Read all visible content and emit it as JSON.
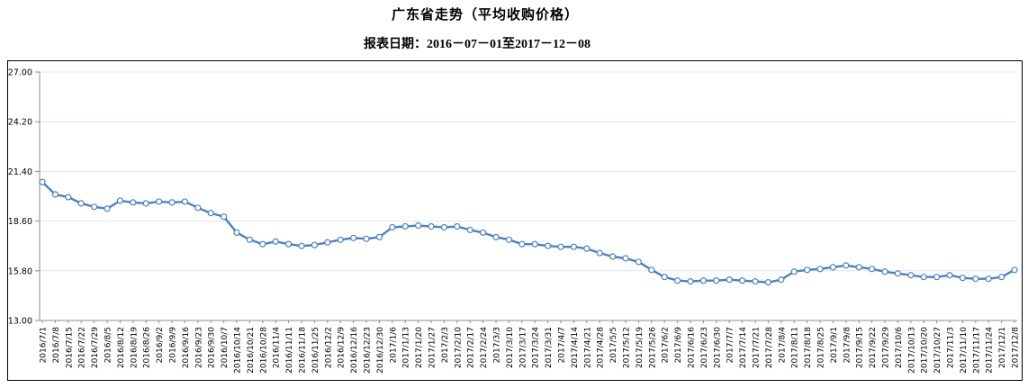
{
  "chart_data": {
    "type": "line",
    "title": "广东省走势（平均收购价格）",
    "subtitle": "报表日期：2016－07－01至2017－12－08",
    "xlabel": "",
    "ylabel": "",
    "ylim": [
      13.0,
      27.0
    ],
    "y_ticks": [
      "27.00",
      "24.20",
      "21.40",
      "18.60",
      "15.80",
      "13.00"
    ],
    "grid": true,
    "legend_position": "none",
    "marker": "hollow-circle",
    "categories": [
      "2016/7/1",
      "2016/7/8",
      "2016/7/15",
      "2016/7/22",
      "2016/7/29",
      "2016/8/5",
      "2016/8/12",
      "2016/8/19",
      "2016/8/26",
      "2016/9/2",
      "2016/9/9",
      "2016/9/16",
      "2016/9/23",
      "2016/9/30",
      "2016/10/7",
      "2016/10/14",
      "2016/10/21",
      "2016/10/28",
      "2016/11/4",
      "2016/11/11",
      "2016/11/18",
      "2016/11/25",
      "2016/12/2",
      "2016/12/9",
      "2016/12/16",
      "2016/12/23",
      "2016/12/30",
      "2017/1/6",
      "2017/1/13",
      "2017/1/20",
      "2017/1/27",
      "2017/2/3",
      "2017/2/10",
      "2017/2/17",
      "2017/2/24",
      "2017/3/3",
      "2017/3/10",
      "2017/3/17",
      "2017/3/24",
      "2017/3/31",
      "2017/4/7",
      "2017/4/14",
      "2017/4/21",
      "2017/4/28",
      "2017/5/5",
      "2017/5/12",
      "2017/5/19",
      "2017/5/26",
      "2017/6/2",
      "2017/6/9",
      "2017/6/16",
      "2017/6/23",
      "2017/6/30",
      "2017/7/7",
      "2017/7/14",
      "2017/7/21",
      "2017/7/28",
      "2017/8/4",
      "2017/8/11",
      "2017/8/18",
      "2017/8/25",
      "2017/9/1",
      "2017/9/8",
      "2017/9/15",
      "2017/9/22",
      "2017/9/29",
      "2017/10/6",
      "2017/10/13",
      "2017/10/20",
      "2017/10/27",
      "2017/11/3",
      "2017/11/10",
      "2017/11/17",
      "2017/11/24",
      "2017/12/1",
      "2017/12/8"
    ],
    "series": [
      {
        "name": "平均收购价格",
        "values": [
          20.8,
          20.1,
          19.95,
          19.6,
          19.4,
          19.3,
          19.75,
          19.65,
          19.6,
          19.7,
          19.65,
          19.7,
          19.35,
          19.05,
          18.85,
          17.95,
          17.55,
          17.3,
          17.45,
          17.3,
          17.2,
          17.25,
          17.4,
          17.55,
          17.65,
          17.6,
          17.7,
          18.25,
          18.3,
          18.35,
          18.3,
          18.25,
          18.3,
          18.1,
          17.95,
          17.7,
          17.55,
          17.3,
          17.3,
          17.2,
          17.15,
          17.15,
          17.05,
          16.8,
          16.6,
          16.5,
          16.3,
          15.85,
          15.45,
          15.25,
          15.2,
          15.25,
          15.25,
          15.3,
          15.25,
          15.2,
          15.15,
          15.3,
          15.75,
          15.85,
          15.9,
          16.0,
          16.1,
          16.0,
          15.9,
          15.75,
          15.65,
          15.55,
          15.45,
          15.45,
          15.55,
          15.4,
          15.35,
          15.35,
          15.45,
          15.85
        ]
      }
    ],
    "colors": {
      "line": "#4f81bd",
      "marker_fill": "#ffffff",
      "gridline": "#dce6f1",
      "axis": "#8c8c8c",
      "text": "#000000",
      "border": "#000000"
    }
  }
}
